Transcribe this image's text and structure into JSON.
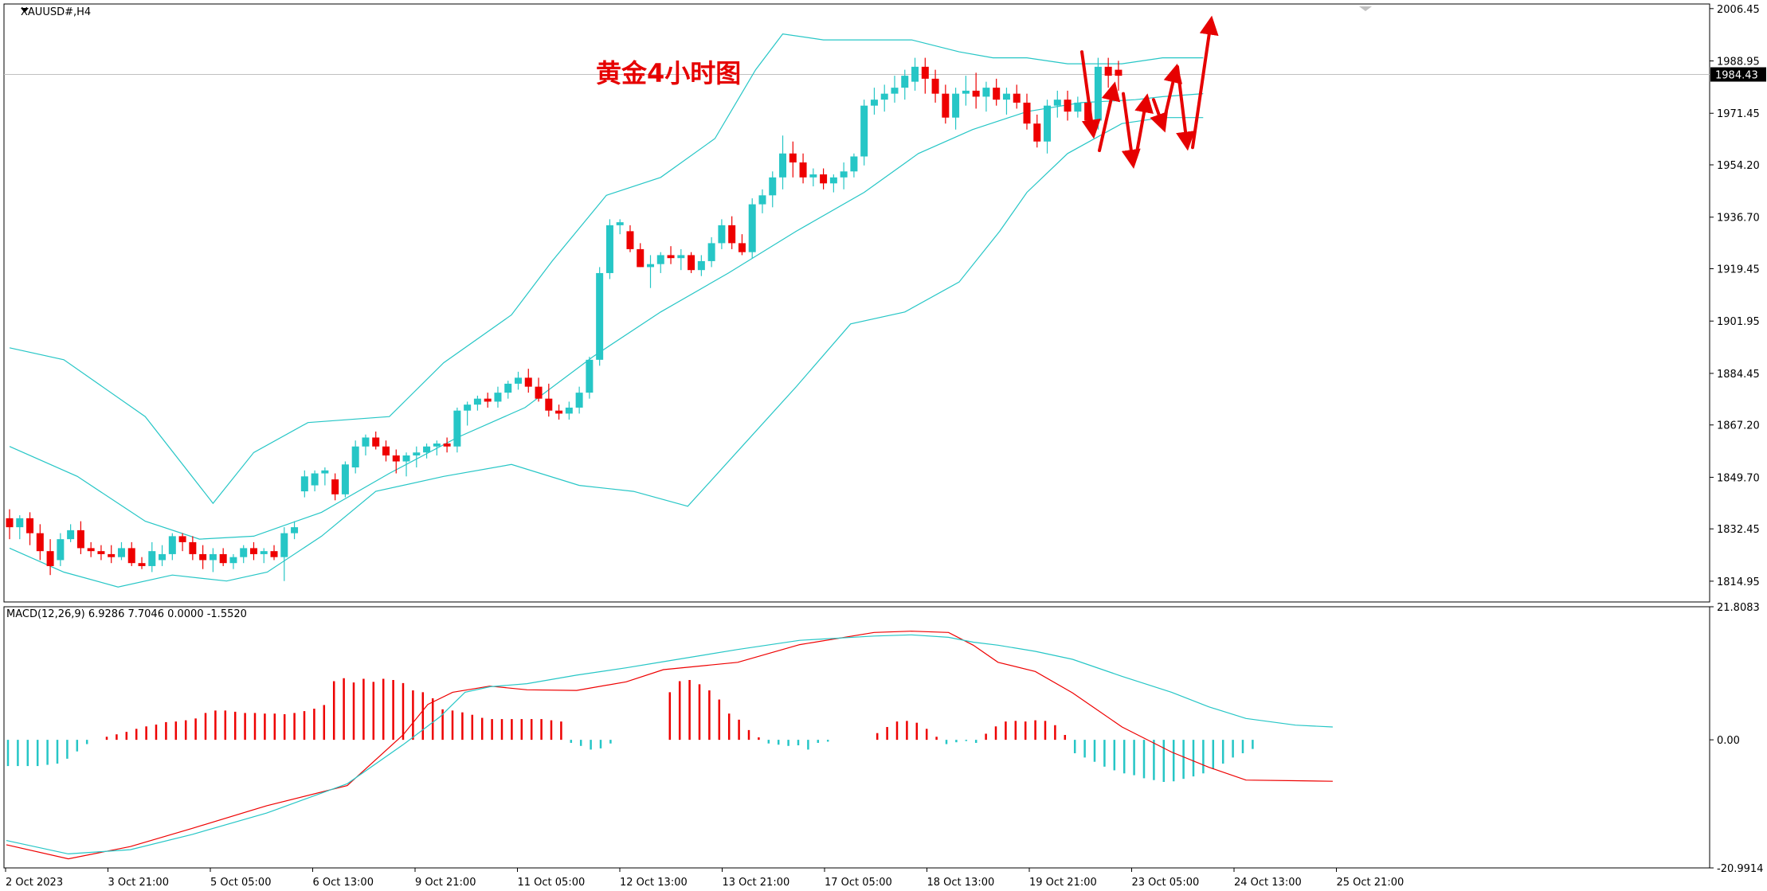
{
  "chart_data": {
    "type": "candlestick",
    "symbol_label": "XAUUSD#,H4",
    "title": "黄金4小时图",
    "price_axis": {
      "ticks": [
        "2006.45",
        "1988.95",
        "1971.45",
        "1954.20",
        "1936.70",
        "1919.45",
        "1901.95",
        "1884.45",
        "1867.20",
        "1849.70",
        "1832.45",
        "1814.95"
      ],
      "range": [
        1808,
        2008
      ],
      "current_price_label": "1984.43",
      "current_price": 1984.43
    },
    "time_axis": {
      "labels": [
        "2 Oct 2023",
        "3 Oct 21:00",
        "5 Oct 05:00",
        "6 Oct 13:00",
        "9 Oct 21:00",
        "11 Oct 05:00",
        "12 Oct 13:00",
        "13 Oct 21:00",
        "17 Oct 05:00",
        "18 Oct 13:00",
        "19 Oct 21:00",
        "23 Oct 05:00",
        "24 Oct 13:00",
        "25 Oct 21:00"
      ],
      "label_bars": [
        0,
        10,
        20,
        30,
        40,
        50,
        60,
        70,
        80,
        90,
        100,
        110,
        120,
        130
      ]
    },
    "colors": {
      "bull": "#26c6c6",
      "bear": "#ee0000",
      "band": "#26c6c6",
      "signal": "#26c6c6",
      "macd": "#ee0000",
      "arrow": "#e60000"
    },
    "candles": [
      [
        1836,
        1839,
        1829,
        1833
      ],
      [
        1833,
        1837,
        1829,
        1836
      ],
      [
        1836,
        1838,
        1827,
        1831
      ],
      [
        1831,
        1834,
        1822,
        1825
      ],
      [
        1825,
        1829,
        1817,
        1820
      ],
      [
        1822,
        1831,
        1820,
        1829
      ],
      [
        1829,
        1834,
        1828,
        1832
      ],
      [
        1832,
        1835,
        1824,
        1826
      ],
      [
        1826,
        1828,
        1823,
        1825
      ],
      [
        1825,
        1827,
        1822,
        1824
      ],
      [
        1824,
        1827,
        1821,
        1823
      ],
      [
        1823,
        1828,
        1822,
        1826
      ],
      [
        1826,
        1828,
        1820,
        1821
      ],
      [
        1821,
        1823,
        1819,
        1820
      ],
      [
        1820,
        1828,
        1818,
        1825
      ],
      [
        1822,
        1827,
        1820,
        1824
      ],
      [
        1824,
        1831,
        1822,
        1830
      ],
      [
        1830,
        1831,
        1825,
        1828
      ],
      [
        1828,
        1830,
        1822,
        1824
      ],
      [
        1824,
        1827,
        1819,
        1822
      ],
      [
        1822,
        1826,
        1818,
        1824
      ],
      [
        1824,
        1826,
        1820,
        1821
      ],
      [
        1821,
        1824,
        1819,
        1823
      ],
      [
        1823,
        1827,
        1821,
        1826
      ],
      [
        1826,
        1828,
        1822,
        1824
      ],
      [
        1824,
        1826,
        1821,
        1825
      ],
      [
        1825,
        1827,
        1822,
        1823
      ],
      [
        1823,
        1833,
        1815,
        1831
      ],
      [
        1831,
        1835,
        1829,
        1833
      ],
      [
        1845,
        1852,
        1843,
        1850
      ],
      [
        1847,
        1852,
        1845,
        1851
      ],
      [
        1851,
        1853,
        1847,
        1852
      ],
      [
        1849,
        1851,
        1842,
        1844
      ],
      [
        1844,
        1855,
        1843,
        1854
      ],
      [
        1853,
        1862,
        1851,
        1860
      ],
      [
        1860,
        1864,
        1857,
        1863
      ],
      [
        1863,
        1865,
        1859,
        1860
      ],
      [
        1860,
        1862,
        1855,
        1857
      ],
      [
        1857,
        1859,
        1851,
        1855
      ],
      [
        1855,
        1858,
        1850,
        1857
      ],
      [
        1857,
        1860,
        1853,
        1858
      ],
      [
        1858,
        1861,
        1856,
        1860
      ],
      [
        1860,
        1862,
        1857,
        1861
      ],
      [
        1861,
        1863,
        1858,
        1860
      ],
      [
        1860,
        1873,
        1858,
        1872
      ],
      [
        1872,
        1875,
        1867,
        1874
      ],
      [
        1874,
        1877,
        1872,
        1876
      ],
      [
        1876,
        1878,
        1873,
        1875
      ],
      [
        1875,
        1880,
        1873,
        1878
      ],
      [
        1878,
        1882,
        1876,
        1881
      ],
      [
        1881,
        1885,
        1879,
        1883
      ],
      [
        1883,
        1886,
        1878,
        1880
      ],
      [
        1880,
        1883,
        1875,
        1876
      ],
      [
        1876,
        1881,
        1870,
        1872
      ],
      [
        1872,
        1874,
        1869,
        1871
      ],
      [
        1871,
        1875,
        1869,
        1873
      ],
      [
        1873,
        1880,
        1871,
        1878
      ],
      [
        1878,
        1890,
        1876,
        1889
      ],
      [
        1889,
        1920,
        1887,
        1918
      ],
      [
        1918,
        1936,
        1916,
        1934
      ],
      [
        1934,
        1936,
        1931,
        1935
      ],
      [
        1932,
        1934,
        1925,
        1926
      ],
      [
        1926,
        1928,
        1920,
        1920
      ],
      [
        1920,
        1924,
        1913,
        1921
      ],
      [
        1921,
        1925,
        1918,
        1924
      ],
      [
        1924,
        1927,
        1921,
        1923
      ],
      [
        1923,
        1926,
        1919,
        1924
      ],
      [
        1924,
        1925,
        1918,
        1919
      ],
      [
        1919,
        1924,
        1917,
        1922
      ],
      [
        1922,
        1930,
        1920,
        1928
      ],
      [
        1928,
        1936,
        1926,
        1934
      ],
      [
        1934,
        1937,
        1926,
        1928
      ],
      [
        1928,
        1931,
        1924,
        1925
      ],
      [
        1925,
        1943,
        1923,
        1941
      ],
      [
        1941,
        1946,
        1938,
        1944
      ],
      [
        1944,
        1952,
        1940,
        1950
      ],
      [
        1950,
        1964,
        1946,
        1958
      ],
      [
        1958,
        1962,
        1950,
        1955
      ],
      [
        1955,
        1958,
        1948,
        1950
      ],
      [
        1950,
        1953,
        1947,
        1951
      ],
      [
        1951,
        1953,
        1946,
        1948
      ],
      [
        1948,
        1951,
        1945,
        1950
      ],
      [
        1950,
        1955,
        1946,
        1952
      ],
      [
        1952,
        1958,
        1950,
        1957
      ],
      [
        1957,
        1976,
        1954,
        1974
      ],
      [
        1974,
        1980,
        1971,
        1976
      ],
      [
        1976,
        1981,
        1972,
        1978
      ],
      [
        1978,
        1984,
        1975,
        1980
      ],
      [
        1980,
        1986,
        1976,
        1984
      ],
      [
        1982,
        1990,
        1979,
        1987
      ],
      [
        1987,
        1990,
        1978,
        1983
      ],
      [
        1983,
        1986,
        1975,
        1978
      ],
      [
        1978,
        1981,
        1968,
        1970
      ],
      [
        1970,
        1980,
        1966,
        1978
      ],
      [
        1978,
        1984,
        1974,
        1979
      ],
      [
        1979,
        1985,
        1973,
        1977
      ],
      [
        1977,
        1982,
        1972,
        1980
      ],
      [
        1980,
        1983,
        1974,
        1976
      ],
      [
        1976,
        1980,
        1971,
        1978
      ],
      [
        1978,
        1981,
        1973,
        1975
      ],
      [
        1975,
        1978,
        1966,
        1968
      ],
      [
        1968,
        1971,
        1960,
        1962
      ],
      [
        1962,
        1976,
        1958,
        1974
      ],
      [
        1974,
        1979,
        1970,
        1976
      ],
      [
        1976,
        1979,
        1969,
        1972
      ],
      [
        1972,
        1977,
        1970,
        1975
      ],
      [
        1975,
        1977,
        1968,
        1969
      ],
      [
        1969,
        1990,
        1966,
        1987
      ],
      [
        1987,
        1990,
        1980,
        1984
      ],
      [
        1986,
        1989,
        1979,
        1984
      ]
    ],
    "bollinger": {
      "upper": [
        [
          0,
          1893
        ],
        [
          8,
          1889
        ],
        [
          20,
          1870
        ],
        [
          30,
          1841
        ],
        [
          36,
          1858
        ],
        [
          44,
          1868
        ],
        [
          56,
          1870
        ],
        [
          64,
          1888
        ],
        [
          74,
          1904
        ],
        [
          80,
          1922
        ],
        [
          88,
          1944
        ],
        [
          96,
          1950
        ],
        [
          104,
          1963
        ],
        [
          110,
          1986
        ],
        [
          114,
          1998
        ],
        [
          120,
          1996
        ],
        [
          126,
          1996
        ],
        [
          133,
          1996
        ],
        [
          140,
          1992
        ],
        [
          145,
          1990
        ],
        [
          150,
          1990
        ],
        [
          156,
          1988
        ],
        [
          164,
          1988
        ],
        [
          170,
          1990
        ],
        [
          176,
          1990
        ]
      ],
      "middle": [
        [
          0,
          1860
        ],
        [
          10,
          1850
        ],
        [
          20,
          1835
        ],
        [
          28,
          1829
        ],
        [
          36,
          1830
        ],
        [
          46,
          1838
        ],
        [
          56,
          1851
        ],
        [
          66,
          1863
        ],
        [
          76,
          1873
        ],
        [
          86,
          1890
        ],
        [
          96,
          1905
        ],
        [
          106,
          1918
        ],
        [
          116,
          1932
        ],
        [
          126,
          1945
        ],
        [
          134,
          1958
        ],
        [
          142,
          1966
        ],
        [
          150,
          1972
        ],
        [
          158,
          1975
        ],
        [
          166,
          1976
        ],
        [
          170,
          1977
        ],
        [
          176,
          1978
        ]
      ],
      "lower": [
        [
          0,
          1826
        ],
        [
          8,
          1818
        ],
        [
          16,
          1813
        ],
        [
          24,
          1817
        ],
        [
          32,
          1815
        ],
        [
          38,
          1818
        ],
        [
          46,
          1830
        ],
        [
          54,
          1845
        ],
        [
          64,
          1850
        ],
        [
          74,
          1854
        ],
        [
          84,
          1847
        ],
        [
          92,
          1845
        ],
        [
          100,
          1840
        ],
        [
          108,
          1860
        ],
        [
          116,
          1880
        ],
        [
          124,
          1901
        ],
        [
          132,
          1905
        ],
        [
          140,
          1915
        ],
        [
          146,
          1932
        ],
        [
          150,
          1945
        ],
        [
          156,
          1958
        ],
        [
          164,
          1968
        ],
        [
          170,
          1970
        ],
        [
          176,
          1970
        ]
      ]
    },
    "macd_indicator": {
      "label": "MACD(12,26,9) 6.9286 7.7046 0.0000 -1.5520",
      "ticks": [
        "21.8083",
        "0.00",
        "-20.9914"
      ],
      "range": [
        -20.9914,
        21.8083
      ],
      "histogram": [
        -4.3,
        -4.3,
        -4.3,
        -4.3,
        -4.1,
        -3.9,
        -3.1,
        -1.9,
        -0.7,
        0,
        0.5,
        0.9,
        1.3,
        1.8,
        2.2,
        2.5,
        2.9,
        3.0,
        3.2,
        3.5,
        4.4,
        4.8,
        4.8,
        4.6,
        4.4,
        4.4,
        4.3,
        4.3,
        4.2,
        4.4,
        4.7,
        5.1,
        5.7,
        9.6,
        10.1,
        9.4,
        10.0,
        9.5,
        10.0,
        9.8,
        9.3,
        8.1,
        7.8,
        6.8,
        5.0,
        4.8,
        4.5,
        4.1,
        3.6,
        3.4,
        3.4,
        3.4,
        3.4,
        3.4,
        3.4,
        3.2,
        3.0,
        -0.5,
        -1.0,
        -1.6,
        -1.4,
        -0.6,
        0,
        0,
        0,
        0,
        0,
        7.8,
        9.6,
        9.8,
        9.1,
        8.1,
        6.6,
        4.3,
        3.3,
        1.6,
        0.4,
        -0.6,
        -0.8,
        -1.0,
        -0.9,
        -1.6,
        -0.5,
        -0.3,
        0,
        0,
        0,
        0,
        1.1,
        2.1,
        3.0,
        3.1,
        2.8,
        1.8,
        0.5,
        -0.7,
        -0.4,
        -0.2,
        -0.5,
        1.0,
        2.2,
        3.0,
        3.1,
        3.0,
        3.2,
        3.1,
        2.4,
        0.8,
        -2.2,
        -2.9,
        -3.6,
        -4.4,
        -5.0,
        -5.5,
        -5.8,
        -6.3,
        -6.6,
        -6.9,
        -6.8,
        -6.4,
        -6.0,
        -5.5,
        -4.8,
        -3.9,
        -2.9,
        -2.2,
        -1.5
      ],
      "macd_line": [
        [
          0,
          -17.2
        ],
        [
          10,
          -19.5
        ],
        [
          20,
          -17.5
        ],
        [
          30,
          -14.5
        ],
        [
          42,
          -10.8
        ],
        [
          55,
          -7.5
        ],
        [
          64,
          0.8
        ],
        [
          68,
          5.8
        ],
        [
          72,
          7.8
        ],
        [
          78,
          8.8
        ],
        [
          84,
          8.2
        ],
        [
          92,
          8.1
        ],
        [
          100,
          9.5
        ],
        [
          106,
          11.5
        ],
        [
          118,
          12.7
        ],
        [
          128,
          15.6
        ],
        [
          140,
          17.6
        ],
        [
          146,
          17.8
        ],
        [
          152,
          17.6
        ],
        [
          156,
          15.5
        ],
        [
          160,
          12.7
        ],
        [
          166,
          11.2
        ],
        [
          172,
          7.7
        ],
        [
          180,
          2.1
        ],
        [
          188,
          -2.0
        ],
        [
          194,
          -4.5
        ],
        [
          200,
          -6.6
        ],
        [
          208,
          -6.7
        ],
        [
          214,
          -6.8
        ]
      ],
      "signal_line": [
        [
          0,
          -16.5
        ],
        [
          10,
          -18.7
        ],
        [
          20,
          -18.0
        ],
        [
          30,
          -15.5
        ],
        [
          42,
          -12.0
        ],
        [
          55,
          -7.2
        ],
        [
          64,
          -0.8
        ],
        [
          70,
          3.8
        ],
        [
          74,
          7.8
        ],
        [
          78,
          8.7
        ],
        [
          84,
          9.2
        ],
        [
          92,
          10.6
        ],
        [
          100,
          11.8
        ],
        [
          106,
          12.8
        ],
        [
          118,
          14.8
        ],
        [
          128,
          16.3
        ],
        [
          140,
          17.0
        ],
        [
          146,
          17.2
        ],
        [
          152,
          16.8
        ],
        [
          156,
          16.0
        ],
        [
          160,
          15.5
        ],
        [
          166,
          14.5
        ],
        [
          172,
          13.2
        ],
        [
          180,
          10.4
        ],
        [
          188,
          7.8
        ],
        [
          194,
          5.4
        ],
        [
          200,
          3.5
        ],
        [
          208,
          2.4
        ],
        [
          214,
          2.1
        ]
      ]
    },
    "annotations": {
      "arrows": [
        [
          [
            958,
            1992
          ],
          [
            972,
            1965
          ]
        ],
        [
          [
            980,
            1959
          ],
          [
            998,
            1980
          ]
        ],
        [
          [
            1010,
            1978
          ],
          [
            1022,
            1955
          ]
        ],
        [
          [
            1026,
            1957
          ],
          [
            1039,
            1976
          ]
        ],
        [
          [
            1048,
            1976
          ],
          [
            1060,
            1967
          ]
        ],
        [
          [
            1062,
            1970
          ],
          [
            1076,
            1986
          ]
        ],
        [
          [
            1078,
            1987
          ],
          [
            1090,
            1961
          ]
        ],
        [
          [
            1097,
            1960
          ],
          [
            1120,
            2002
          ]
        ]
      ]
    }
  }
}
